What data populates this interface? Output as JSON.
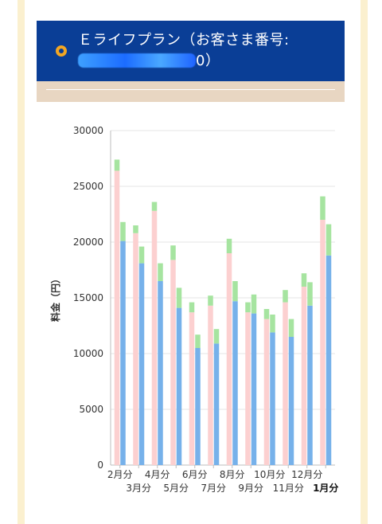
{
  "header": {
    "title_prefix": "Ｅライフプラン（お客さま番号:",
    "title_suffix": "0）"
  },
  "chart_data": {
    "type": "bar",
    "ylabel": "料金（円）",
    "ylim": [
      0,
      30000
    ],
    "yticks": [
      0,
      5000,
      10000,
      15000,
      20000,
      25000,
      30000
    ],
    "grid": true,
    "categories": [
      "2月分",
      "3月分",
      "4月分",
      "5月分",
      "6月分",
      "7月分",
      "8月分",
      "9月分",
      "10月分",
      "11月分",
      "12月分",
      "1月分"
    ],
    "highlight_category": "1月分",
    "colors": {
      "blue": "#76b1ea",
      "pink": "#fcd0d0",
      "green": "#a6e4a0"
    },
    "series": [
      {
        "bar": "left",
        "segments": [
          {
            "color": "pink",
            "values": [
              26400,
              20800,
              22800,
              18400,
              13700,
              14300,
              19000,
              13700,
              13100,
              14600,
              16000,
              22000
            ]
          },
          {
            "color": "green",
            "values": [
              1000,
              700,
              800,
              1300,
              900,
              900,
              1300,
              900,
              900,
              1100,
              1200,
              2100
            ]
          }
        ]
      },
      {
        "bar": "right",
        "segments": [
          {
            "color": "blue",
            "values": [
              20100,
              18100,
              16500,
              14100,
              10500,
              10900,
              14700,
              13600,
              11900,
              11500,
              14300,
              18800
            ]
          },
          {
            "color": "green",
            "values": [
              1700,
              1500,
              1600,
              1800,
              1200,
              1300,
              1800,
              1700,
              1600,
              1600,
              2100,
              2800
            ]
          }
        ]
      }
    ]
  }
}
